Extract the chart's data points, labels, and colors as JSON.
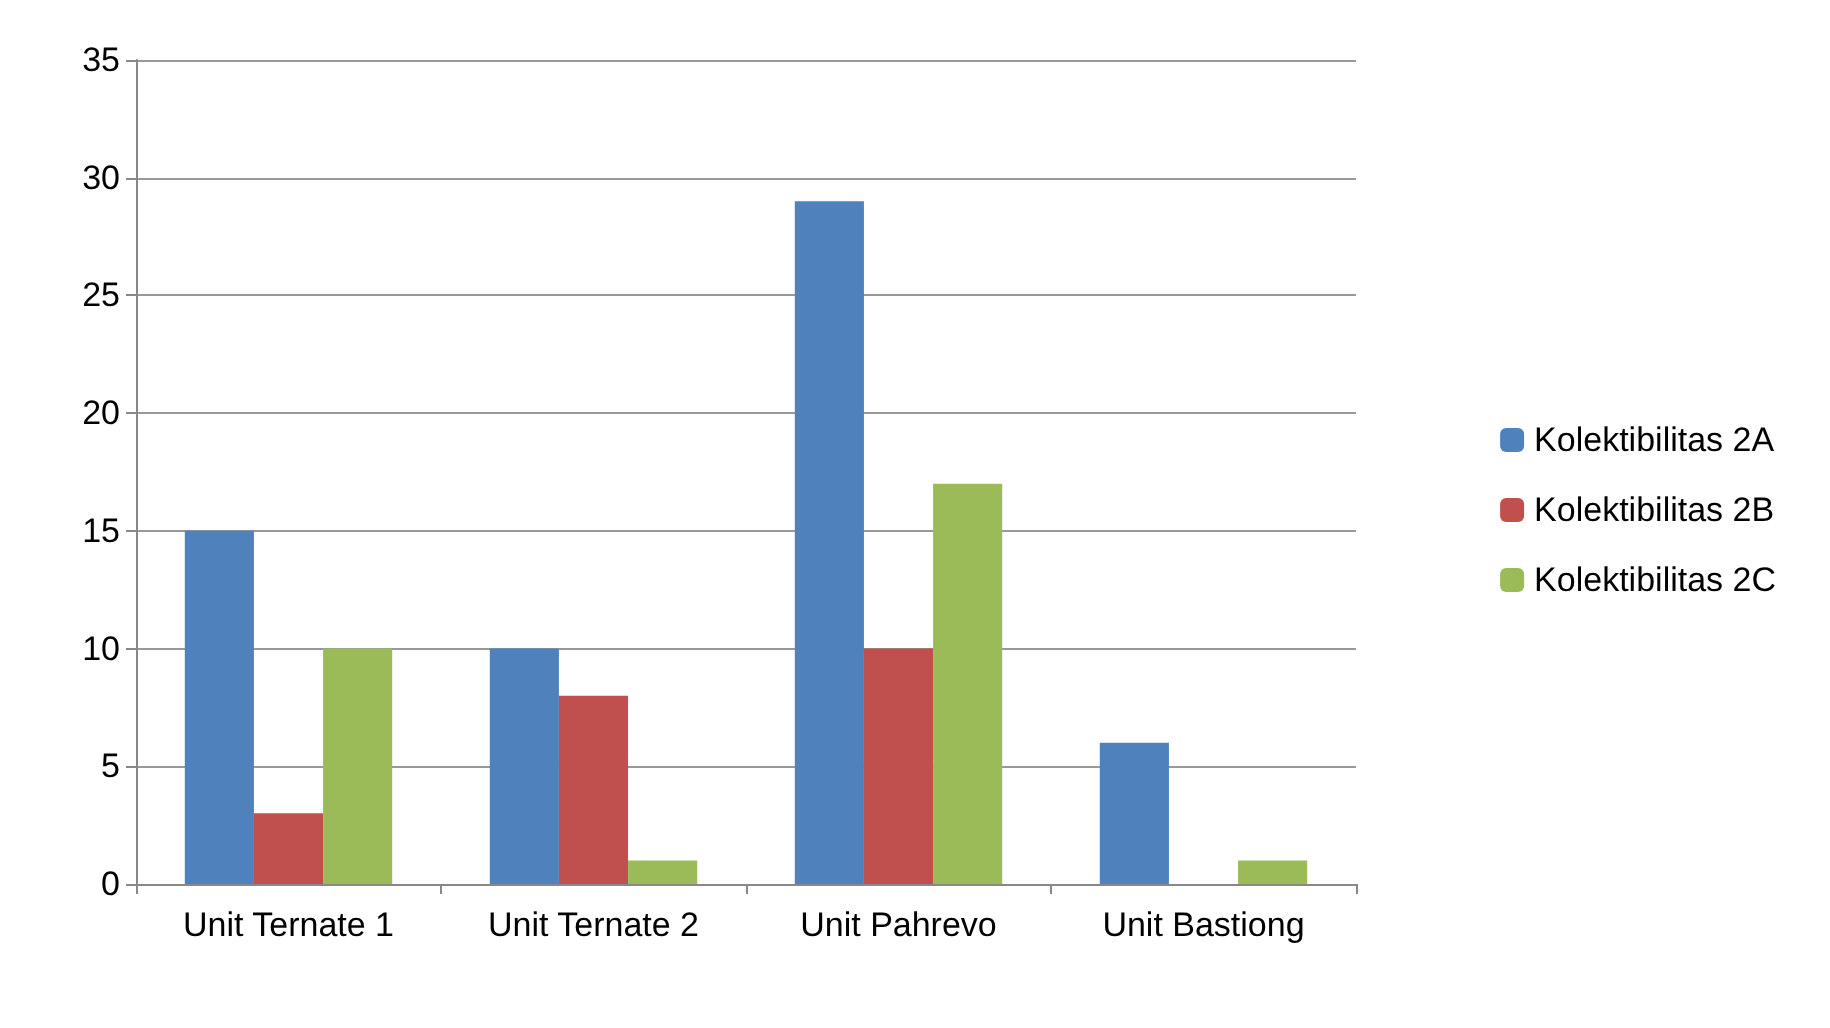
{
  "chart_data": {
    "type": "bar",
    "categories": [
      "Unit Ternate 1",
      "Unit Ternate 2",
      "Unit Pahrevo",
      "Unit Bastiong"
    ],
    "series": [
      {
        "name": "Kolektibilitas 2A",
        "color": "#4f81bd",
        "values": [
          15,
          10,
          29,
          6
        ]
      },
      {
        "name": "Kolektibilitas 2B",
        "color": "#c0504d",
        "values": [
          3,
          8,
          10,
          0
        ]
      },
      {
        "name": "Kolektibilitas 2C",
        "color": "#9bbb59",
        "values": [
          10,
          1,
          17,
          1
        ]
      }
    ],
    "ylim": [
      0,
      35
    ],
    "yticks": [
      0,
      5,
      10,
      15,
      20,
      25,
      30,
      35
    ],
    "grid": "y",
    "legend": "right"
  }
}
